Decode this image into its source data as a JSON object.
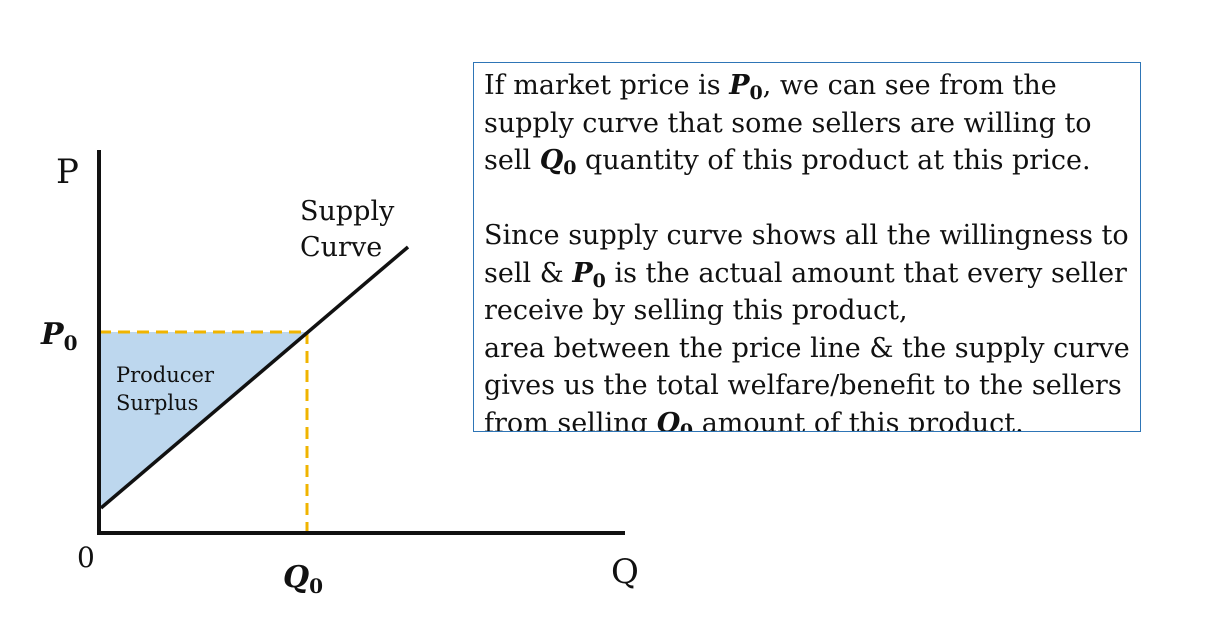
{
  "diagram": {
    "axis_y_label": "P",
    "axis_x_label": "Q",
    "origin_label": "0",
    "price_label": {
      "main": "P",
      "sub": "0"
    },
    "quantity_label": {
      "main": "Q",
      "sub": "0"
    },
    "supply_label_line1": "Supply",
    "supply_label_line2": "Curve",
    "surplus_label_line1": "Producer",
    "surplus_label_line2": "Surplus",
    "colors": {
      "surplus_fill": "#bdd7ee",
      "dashed_line": "#f0b400",
      "axis": "#111111",
      "box_border": "#2e75b6"
    }
  },
  "explanation": {
    "para1": {
      "l1a": "If market price is ",
      "l1b": ", we can see from the",
      "l2": "supply curve that some sellers are willing to",
      "l3a": "sell ",
      "l3b": " quantity of this product at this price."
    },
    "para2": {
      "l1": "Since supply curve shows all the willingness to",
      "l2a": "sell & ",
      "l2b": " is the actual amount that every seller",
      "l3": "receive by selling this product,",
      "l4": "area between the price line & the supply curve",
      "l5": "gives us the total welfare/benefit to the sellers",
      "l6a": "from selling ",
      "l6b": " amount of this product."
    },
    "var_p": "P",
    "var_q": "Q",
    "var_sub": "0"
  }
}
